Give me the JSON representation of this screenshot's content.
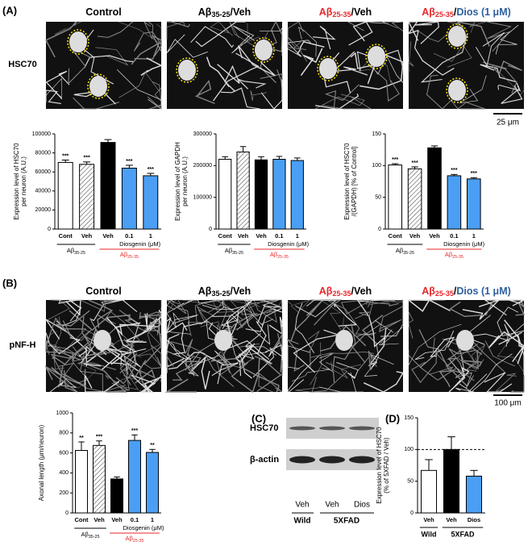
{
  "figure": {
    "panel_labels": [
      "(A)",
      "(B)",
      "(C)",
      "(D)"
    ],
    "column_headers": [
      [
        {
          "text": "Control"
        }
      ],
      [
        {
          "text": "Aβ"
        },
        {
          "text": "35-25",
          "sub": true
        },
        {
          "text": "/Veh"
        }
      ],
      [
        {
          "text": "Aβ",
          "color": "#e8262a"
        },
        {
          "text": "25-35",
          "sub": true,
          "color": "#e8262a"
        },
        {
          "text": "/Veh"
        }
      ],
      [
        {
          "text": "Aβ",
          "color": "#e8262a"
        },
        {
          "text": "25-35",
          "sub": true,
          "color": "#e8262a"
        },
        {
          "text": "/"
        },
        {
          "text": "Dios (1 μM)",
          "color": "#2e5f9e"
        }
      ]
    ],
    "row_labels": [
      "HSC70",
      "pNF-H"
    ],
    "scale_bars": [
      "25 μm",
      "100 μm"
    ],
    "blot": {
      "rows": [
        "HSC70",
        "β-actin"
      ],
      "lanes": [
        "Veh",
        "Veh",
        "Dios"
      ],
      "groups": [
        "Wild",
        "5XFAD"
      ]
    }
  },
  "chart_data": [
    {
      "type": "bar",
      "ylabel": [
        "Expression level of HSC70",
        "per neuron (A.U.)"
      ],
      "categories": [
        "Cont",
        "Veh",
        "Veh",
        "0.1",
        "1"
      ],
      "values": [
        70000,
        68000,
        91000,
        64000,
        56000
      ],
      "errors": [
        2500,
        2500,
        3000,
        3000,
        2500
      ],
      "annotations": [
        "***",
        "***",
        null,
        "***",
        "***"
      ],
      "colors": [
        "#ffffff",
        "#ffffff",
        "#000000",
        "#4a9ff5",
        "#4a9ff5"
      ],
      "hatched": [
        false,
        true,
        false,
        false,
        false
      ],
      "ylim": [
        0,
        100000
      ],
      "yticks": [
        0,
        20000,
        40000,
        60000,
        80000,
        100000
      ],
      "control_label": [
        {
          "text": "Aβ"
        },
        {
          "text": "35-25",
          "sub": true
        }
      ],
      "treatment_label": "Diosgenin (μM)",
      "disease_label": [
        {
          "text": "Aβ",
          "color": "#e8262a"
        },
        {
          "text": "25-35",
          "sub": true,
          "color": "#e8262a"
        }
      ]
    },
    {
      "type": "bar",
      "ylabel": [
        "Expression level of GAPDH",
        "per neuron (A.U.)"
      ],
      "categories": [
        "Cont",
        "Veh",
        "Veh",
        "0.1",
        "1"
      ],
      "values": [
        220000,
        243000,
        218000,
        220000,
        216000
      ],
      "errors": [
        8000,
        17000,
        10000,
        9000,
        8000
      ],
      "colors": [
        "#ffffff",
        "#ffffff",
        "#000000",
        "#4a9ff5",
        "#4a9ff5"
      ],
      "hatched": [
        false,
        true,
        false,
        false,
        false
      ],
      "ylim": [
        0,
        300000
      ],
      "yticks": [
        0,
        100000,
        200000,
        300000
      ],
      "control_label": [
        {
          "text": "Aβ"
        },
        {
          "text": "35-25",
          "sub": true
        }
      ],
      "treatment_label": "Diosgenin (μM)",
      "disease_label": [
        {
          "text": "Aβ",
          "color": "#e8262a"
        },
        {
          "text": "25-35",
          "sub": true,
          "color": "#e8262a"
        }
      ]
    },
    {
      "type": "bar",
      "ylabel": [
        "Expression level of HSC70",
        "/(GAPDH) [% of Control]"
      ],
      "categories": [
        "Cont",
        "Veh",
        "Veh",
        "0.1",
        "1"
      ],
      "values": [
        101,
        95,
        128,
        84,
        79
      ],
      "errors": [
        2,
        3,
        3,
        2,
        2
      ],
      "annotations": [
        "***",
        "***",
        null,
        "***",
        "***"
      ],
      "colors": [
        "#ffffff",
        "#ffffff",
        "#000000",
        "#4a9ff5",
        "#4a9ff5"
      ],
      "hatched": [
        false,
        true,
        false,
        false,
        false
      ],
      "ylim": [
        0,
        150
      ],
      "yticks": [
        0,
        50,
        100,
        150
      ],
      "control_label": [
        {
          "text": "Aβ"
        },
        {
          "text": "35-25",
          "sub": true
        }
      ],
      "treatment_label": "Diosgenin (μM)",
      "disease_label": [
        {
          "text": "Aβ",
          "color": "#e8262a"
        },
        {
          "text": "25-35",
          "sub": true,
          "color": "#e8262a"
        }
      ]
    },
    {
      "type": "bar",
      "ylabel": [
        "Axonal length (μm/neuron)"
      ],
      "categories": [
        "Cont",
        "Veh",
        "Veh",
        "0.1",
        "1"
      ],
      "values": [
        625,
        675,
        340,
        725,
        605
      ],
      "errors": [
        85,
        45,
        20,
        55,
        30
      ],
      "annotations": [
        "**",
        "***",
        null,
        "***",
        "**"
      ],
      "colors": [
        "#ffffff",
        "#ffffff",
        "#000000",
        "#4a9ff5",
        "#4a9ff5"
      ],
      "hatched": [
        false,
        true,
        false,
        false,
        false
      ],
      "ylim": [
        0,
        1000
      ],
      "yticks": [
        0,
        200,
        400,
        600,
        800,
        1000
      ],
      "control_label": [
        {
          "text": "Aβ"
        },
        {
          "text": "35-25",
          "sub": true
        }
      ],
      "treatment_label": "Diosgenin (μM)",
      "disease_label": [
        {
          "text": "Aβ",
          "color": "#e8262a"
        },
        {
          "text": "25-35",
          "sub": true,
          "color": "#e8262a"
        }
      ]
    },
    {
      "type": "bar",
      "ylabel": [
        "Expression level of HSC70",
        "(% of 5XFAD / Veh)"
      ],
      "categories": [
        "Veh",
        "Veh",
        "Dios"
      ],
      "values": [
        67,
        100,
        58
      ],
      "errors": [
        17,
        20,
        9
      ],
      "colors": [
        "#ffffff",
        "#000000",
        "#4a9ff5"
      ],
      "hatched": [
        false,
        false,
        false
      ],
      "ylim": [
        0,
        150
      ],
      "yticks": [
        0,
        50,
        100,
        150
      ],
      "refline": 100,
      "group_labels": [
        "Wild",
        "5XFAD"
      ]
    }
  ]
}
